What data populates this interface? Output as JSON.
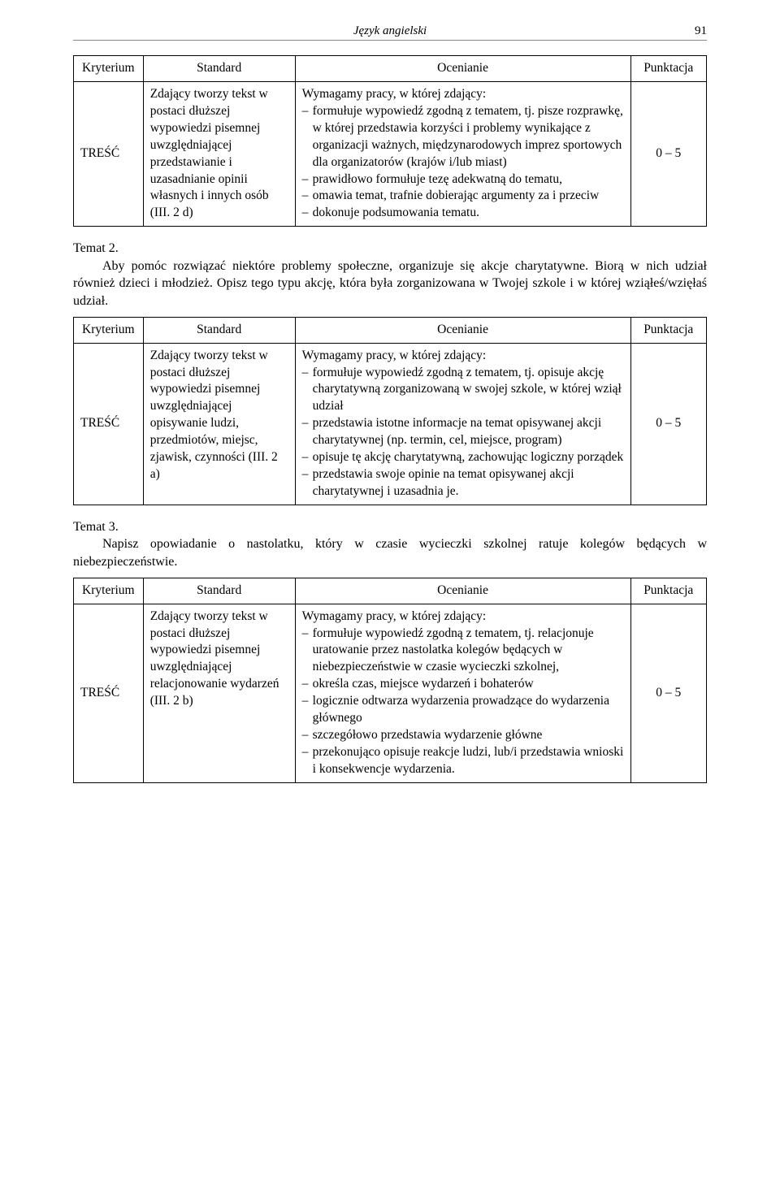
{
  "header": {
    "running_title": "Język angielski",
    "page_number": "91"
  },
  "labels": {
    "kryterium": "Kryterium",
    "standard": "Standard",
    "ocenianie": "Ocenianie",
    "punktacja": "Punktacja"
  },
  "table1": {
    "label": "TREŚĆ",
    "standard": "Zdający tworzy tekst w postaci dłuższej wypowiedzi pisemnej uwzględniającej przedstawianie i uzasadnianie opinii własnych i innych osób (III. 2 d)",
    "intro": "Wymagamy pracy, w której zdający:",
    "b1": "formułuje wypowiedź zgodną z tematem, tj. pisze rozprawkę, w której przedstawia korzyści i problemy wynikające z organizacji ważnych, międzynarodowych imprez sportowych dla organizatorów (krajów i/lub miast)",
    "b2": "prawidłowo formułuje tezę adekwatną do tematu,",
    "b3": "omawia temat, trafnie dobierając argumenty za i przeciw",
    "b4": "dokonuje podsumowania tematu.",
    "points": "0 – 5"
  },
  "temat2": {
    "title": "Temat 2.",
    "body": "Aby pomóc rozwiązać niektóre problemy społeczne, organizuje się akcje charytatywne. Biorą w nich udział również dzieci i młodzież. Opisz tego typu akcję, która była zorganizowana w Twojej szkole i w której wziąłeś/wzięłaś udział."
  },
  "table2": {
    "label": "TREŚĆ",
    "standard": "Zdający tworzy tekst w postaci dłuższej wypowiedzi pisemnej uwzględniającej opisywanie ludzi, przedmiotów, miejsc, zjawisk, czynności (III. 2 a)",
    "intro": "Wymagamy pracy, w której zdający:",
    "b1": "formułuje wypowiedź zgodną z tematem, tj. opisuje akcję charytatywną zorganizowaną w swojej szkole, w której wziął udział",
    "b2": "przedstawia istotne informacje na temat opisywanej akcji charytatywnej (np. termin, cel, miejsce, program)",
    "b3": "opisuje tę akcję charytatywną, zachowując logiczny porządek",
    "b4": "przedstawia swoje opinie na temat opisywanej akcji charytatywnej i uzasadnia je.",
    "points": "0 – 5"
  },
  "temat3": {
    "title": "Temat 3.",
    "body": "Napisz opowiadanie o nastolatku, który w czasie wycieczki szkolnej ratuje kolegów będących w niebezpieczeństwie."
  },
  "table3": {
    "label": "TREŚĆ",
    "standard": "Zdający tworzy tekst w postaci dłuższej wypowiedzi pisemnej uwzględniającej relacjonowanie wydarzeń (III. 2 b)",
    "intro": "Wymagamy pracy, w której zdający:",
    "b1": "formułuje wypowiedź zgodną z tematem, tj. relacjonuje uratowanie przez nastolatka kolegów będących w niebezpieczeństwie w czasie wycieczki szkolnej,",
    "b2": "określa czas, miejsce wydarzeń i bohaterów",
    "b3": "logicznie odtwarza wydarzenia prowadzące do wydarzenia głównego",
    "b4": "szczegółowo przedstawia wydarzenie główne",
    "b5": "przekonująco opisuje reakcje ludzi, lub/i przedstawia wnioski i konsekwencje wydarzenia.",
    "points": "0 – 5"
  }
}
